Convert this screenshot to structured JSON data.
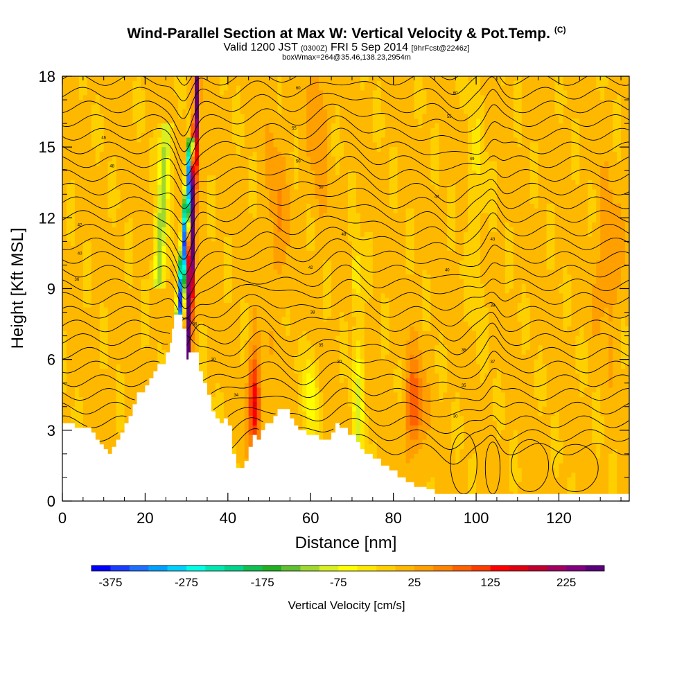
{
  "title": "Wind-Parallel Section at Max W: Vertical Velocity & Pot.Temp.",
  "title_mark": "(C)",
  "subtitle_main": "Valid 1200 JST",
  "subtitle_utc": "(0300Z)",
  "subtitle_date": "FRI 5 Sep 2014",
  "subtitle_fcst": "[9hrFcst@2246z]",
  "subtitle2": "boxWmax=264@35.46,138.23,2954m",
  "chart_data": {
    "type": "heatmap",
    "xlabel": "Distance [nm]",
    "ylabel": "Height [Kft MSL]",
    "xlim": [
      0,
      137
    ],
    "ylim": [
      0,
      18
    ],
    "x_ticks": [
      0,
      20,
      40,
      60,
      80,
      100,
      120
    ],
    "y_ticks": [
      0,
      3,
      6,
      9,
      12,
      15,
      18
    ],
    "colorbar": {
      "label": "Vertical Velocity [cm/s]",
      "range": [
        -400,
        275
      ],
      "step": 25,
      "tick_values": [
        -375,
        -275,
        -175,
        -75,
        25,
        125,
        225
      ],
      "colors": [
        "#0000ff",
        "#1a3cff",
        "#1e6fff",
        "#00a0ff",
        "#00d0ff",
        "#00ffe6",
        "#00e8b0",
        "#00d48c",
        "#10c050",
        "#20b020",
        "#60c030",
        "#a0d830",
        "#d8f020",
        "#ffff00",
        "#ffe800",
        "#ffd000",
        "#ffb800",
        "#ffa000",
        "#ff8400",
        "#ff6000",
        "#ff3c00",
        "#ff0000",
        "#e00010",
        "#c00030",
        "#a00060",
        "#800080",
        "#5a007a"
      ]
    },
    "theta_contour_labels": [
      {
        "x": 3.5,
        "y": 9.4,
        "text": "36"
      },
      {
        "x": 4.2,
        "y": 10.5,
        "text": "40"
      },
      {
        "x": 4.2,
        "y": 11.7,
        "text": "42"
      },
      {
        "x": 10,
        "y": 15.4,
        "text": "46"
      },
      {
        "x": 12,
        "y": 14.2,
        "text": "48"
      },
      {
        "x": 32,
        "y": 7.5,
        "text": "36"
      },
      {
        "x": 36.5,
        "y": 6.0,
        "text": "30"
      },
      {
        "x": 42,
        "y": 4.5,
        "text": "34"
      },
      {
        "x": 56,
        "y": 15.8,
        "text": "55"
      },
      {
        "x": 57,
        "y": 14.4,
        "text": "50"
      },
      {
        "x": 60,
        "y": 9.9,
        "text": "42"
      },
      {
        "x": 60.5,
        "y": 8.0,
        "text": "38"
      },
      {
        "x": 62.5,
        "y": 6.6,
        "text": "35"
      },
      {
        "x": 67,
        "y": 5.9,
        "text": "30"
      },
      {
        "x": 57,
        "y": 17.5,
        "text": "60"
      },
      {
        "x": 62.5,
        "y": 13.3,
        "text": "50"
      },
      {
        "x": 68,
        "y": 11.3,
        "text": "48"
      },
      {
        "x": 95,
        "y": 17.3,
        "text": "60"
      },
      {
        "x": 93.5,
        "y": 16.3,
        "text": "55"
      },
      {
        "x": 99,
        "y": 14.5,
        "text": "49"
      },
      {
        "x": 90.5,
        "y": 12.9,
        "text": "44"
      },
      {
        "x": 93,
        "y": 9.8,
        "text": "40"
      },
      {
        "x": 104,
        "y": 11.1,
        "text": "43"
      },
      {
        "x": 104,
        "y": 8.3,
        "text": "38"
      },
      {
        "x": 97,
        "y": 6.4,
        "text": "36"
      },
      {
        "x": 104,
        "y": 5.9,
        "text": "37"
      },
      {
        "x": 97,
        "y": 4.9,
        "text": "35"
      },
      {
        "x": 95,
        "y": 3.6,
        "text": "30"
      }
    ]
  }
}
